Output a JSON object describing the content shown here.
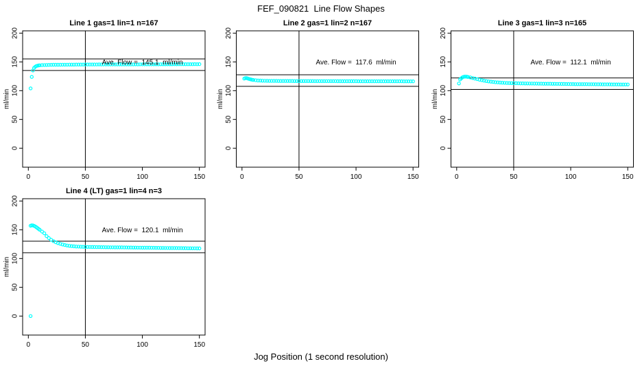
{
  "figure": {
    "title": "FEF_090821  Line Flow Shapes",
    "xlabel": "Jog Position (1 second resolution)",
    "background_color": "#ffffff",
    "point_color": "#00ffff",
    "axis_color": "#000000"
  },
  "chart_data": [
    {
      "type": "scatter",
      "title": "Line 1 gas=1 lin=1 n=167",
      "ylabel": "ml/min",
      "annotation": "Ave. Flow =  145.1  ml/min",
      "annotation_xy": [
        100,
        150
      ],
      "ave_flow_ml_min": 145.1,
      "ref_line_x": 50,
      "ref_lines_y": [
        135.1,
        155.1
      ],
      "xticks": [
        0,
        50,
        100,
        150
      ],
      "yticks": [
        0,
        50,
        100,
        150,
        200
      ],
      "xlim": [
        -5,
        155
      ],
      "ylim": [
        -33,
        204
      ],
      "points": [
        [
          2,
          104
        ],
        [
          3,
          124
        ],
        [
          4,
          135
        ],
        [
          5,
          139.5
        ],
        [
          6,
          141.5
        ],
        [
          7,
          142.8
        ],
        [
          8,
          143.4
        ],
        [
          9,
          143.8
        ],
        [
          10,
          144.1
        ],
        [
          12,
          144.4
        ],
        [
          14,
          144.6
        ],
        [
          16,
          144.7
        ],
        [
          18,
          144.8
        ],
        [
          20,
          144.9
        ],
        [
          22,
          145
        ],
        [
          24,
          145
        ],
        [
          26,
          145.1
        ],
        [
          28,
          145.1
        ],
        [
          30,
          145.2
        ],
        [
          32,
          145.2
        ],
        [
          34,
          145.2
        ],
        [
          36,
          145.3
        ],
        [
          38,
          145.3
        ],
        [
          40,
          145.3
        ],
        [
          42,
          145.4
        ],
        [
          44,
          145.4
        ],
        [
          46,
          145.4
        ],
        [
          48,
          145.4
        ],
        [
          50,
          145.5
        ],
        [
          52,
          145.5
        ],
        [
          54,
          145.5
        ],
        [
          56,
          145.5
        ],
        [
          58,
          145.5
        ],
        [
          60,
          145.5
        ],
        [
          62,
          145.6
        ],
        [
          64,
          145.5
        ],
        [
          66,
          145.6
        ],
        [
          68,
          145.6
        ],
        [
          70,
          145.6
        ],
        [
          72,
          145.6
        ],
        [
          74,
          145.6
        ],
        [
          76,
          145.6
        ],
        [
          78,
          145.7
        ],
        [
          80,
          145.6
        ],
        [
          82,
          145.7
        ],
        [
          84,
          145.7
        ],
        [
          86,
          145.7
        ],
        [
          88,
          145.7
        ],
        [
          90,
          145.7
        ],
        [
          92,
          145.7
        ],
        [
          94,
          145.8
        ],
        [
          96,
          145.7
        ],
        [
          98,
          145.8
        ],
        [
          100,
          145.8
        ],
        [
          102,
          145.8
        ],
        [
          104,
          145.8
        ],
        [
          106,
          145.8
        ],
        [
          108,
          145.8
        ],
        [
          110,
          145.8
        ],
        [
          112,
          145.9
        ],
        [
          114,
          145.8
        ],
        [
          116,
          145.9
        ],
        [
          118,
          145.9
        ],
        [
          120,
          145.9
        ],
        [
          122,
          145.9
        ],
        [
          124,
          145.9
        ],
        [
          126,
          145.9
        ],
        [
          128,
          146
        ],
        [
          130,
          145.9
        ],
        [
          132,
          146
        ],
        [
          134,
          146
        ],
        [
          136,
          146
        ],
        [
          138,
          146
        ],
        [
          140,
          146
        ],
        [
          142,
          146
        ],
        [
          144,
          146
        ],
        [
          146,
          146.1
        ],
        [
          148,
          146
        ],
        [
          150,
          146.1
        ]
      ]
    },
    {
      "type": "scatter",
      "title": "Line 2 gas=1 lin=2 n=167",
      "ylabel": "ml/min",
      "annotation": "Ave. Flow =  117.6  ml/min",
      "annotation_xy": [
        100,
        150
      ],
      "ave_flow_ml_min": 117.6,
      "ref_line_x": 50,
      "ref_lines_y": [
        107.6,
        127.6
      ],
      "xticks": [
        0,
        50,
        100,
        150
      ],
      "yticks": [
        0,
        50,
        100,
        150,
        200
      ],
      "xlim": [
        -5,
        155
      ],
      "ylim": [
        -33,
        204
      ],
      "points": [
        [
          2,
          121
        ],
        [
          3,
          122
        ],
        [
          4,
          121.8
        ],
        [
          5,
          121.2
        ],
        [
          6,
          120.5
        ],
        [
          7,
          119.9
        ],
        [
          8,
          119.4
        ],
        [
          9,
          119
        ],
        [
          10,
          118.6
        ],
        [
          12,
          118.1
        ],
        [
          14,
          117.7
        ],
        [
          16,
          117.5
        ],
        [
          18,
          117.3
        ],
        [
          20,
          117.2
        ],
        [
          22,
          117.1
        ],
        [
          24,
          117
        ],
        [
          26,
          117
        ],
        [
          28,
          116.9
        ],
        [
          30,
          116.9
        ],
        [
          32,
          116.8
        ],
        [
          34,
          116.8
        ],
        [
          36,
          116.8
        ],
        [
          38,
          116.8
        ],
        [
          40,
          116.8
        ],
        [
          42,
          116.8
        ],
        [
          44,
          116.8
        ],
        [
          46,
          116.7
        ],
        [
          48,
          116.7
        ],
        [
          50,
          116.7
        ],
        [
          52,
          116.7
        ],
        [
          54,
          116.7
        ],
        [
          56,
          116.7
        ],
        [
          58,
          116.7
        ],
        [
          60,
          116.7
        ],
        [
          62,
          116.7
        ],
        [
          64,
          116.6
        ],
        [
          66,
          116.6
        ],
        [
          68,
          116.6
        ],
        [
          70,
          116.6
        ],
        [
          72,
          116.6
        ],
        [
          74,
          116.6
        ],
        [
          76,
          116.6
        ],
        [
          78,
          116.6
        ],
        [
          80,
          116.6
        ],
        [
          82,
          116.6
        ],
        [
          84,
          116.5
        ],
        [
          86,
          116.5
        ],
        [
          88,
          116.5
        ],
        [
          90,
          116.5
        ],
        [
          92,
          116.5
        ],
        [
          94,
          116.5
        ],
        [
          96,
          116.5
        ],
        [
          98,
          116.5
        ],
        [
          100,
          116.5
        ],
        [
          102,
          116.4
        ],
        [
          104,
          116.4
        ],
        [
          106,
          116.4
        ],
        [
          108,
          116.4
        ],
        [
          110,
          116.4
        ],
        [
          112,
          116.4
        ],
        [
          114,
          116.4
        ],
        [
          116,
          116.4
        ],
        [
          118,
          116.4
        ],
        [
          120,
          116.4
        ],
        [
          122,
          116.3
        ],
        [
          124,
          116.3
        ],
        [
          126,
          116.3
        ],
        [
          128,
          116.3
        ],
        [
          130,
          116.3
        ],
        [
          132,
          116.3
        ],
        [
          134,
          116.3
        ],
        [
          136,
          116.3
        ],
        [
          138,
          116.3
        ],
        [
          140,
          116.3
        ],
        [
          142,
          116.2
        ],
        [
          144,
          116.2
        ],
        [
          146,
          116.2
        ],
        [
          148,
          116.2
        ],
        [
          150,
          116.2
        ]
      ]
    },
    {
      "type": "scatter",
      "title": "Line 3 gas=1 lin=3 n=165",
      "ylabel": "ml/min",
      "annotation": "Ave. Flow =  112.1  ml/min",
      "annotation_xy": [
        100,
        150
      ],
      "ave_flow_ml_min": 112.1,
      "ref_line_x": 50,
      "ref_lines_y": [
        102.1,
        122.1
      ],
      "xticks": [
        0,
        50,
        100,
        150
      ],
      "yticks": [
        0,
        50,
        100,
        150,
        200
      ],
      "xlim": [
        -5,
        155
      ],
      "ylim": [
        -33,
        204
      ],
      "points": [
        [
          2,
          112.5
        ],
        [
          3,
          119.5
        ],
        [
          4,
          121.5
        ],
        [
          5,
          123
        ],
        [
          6,
          124
        ],
        [
          7,
          124.5
        ],
        [
          8,
          124.5
        ],
        [
          9,
          124.2
        ],
        [
          10,
          123.8
        ],
        [
          12,
          123
        ],
        [
          14,
          122
        ],
        [
          16,
          121
        ],
        [
          18,
          120
        ],
        [
          20,
          119
        ],
        [
          22,
          118.2
        ],
        [
          24,
          117.4
        ],
        [
          26,
          116.7
        ],
        [
          28,
          116.1
        ],
        [
          30,
          115.6
        ],
        [
          32,
          115.1
        ],
        [
          34,
          114.7
        ],
        [
          36,
          114.4
        ],
        [
          38,
          114.1
        ],
        [
          40,
          113.8
        ],
        [
          42,
          113.6
        ],
        [
          44,
          113.4
        ],
        [
          46,
          113.3
        ],
        [
          48,
          113.1
        ],
        [
          50,
          113
        ],
        [
          52,
          112.9
        ],
        [
          54,
          112.8
        ],
        [
          56,
          112.7
        ],
        [
          58,
          112.6
        ],
        [
          60,
          112.5
        ],
        [
          62,
          112.5
        ],
        [
          64,
          112.4
        ],
        [
          66,
          112.4
        ],
        [
          68,
          112.3
        ],
        [
          70,
          112.3
        ],
        [
          72,
          112.2
        ],
        [
          74,
          112.2
        ],
        [
          76,
          112.1
        ],
        [
          78,
          112.1
        ],
        [
          80,
          112
        ],
        [
          82,
          112
        ],
        [
          84,
          111.9
        ],
        [
          86,
          111.9
        ],
        [
          88,
          111.8
        ],
        [
          90,
          111.8
        ],
        [
          92,
          111.7
        ],
        [
          94,
          111.7
        ],
        [
          96,
          111.6
        ],
        [
          98,
          111.6
        ],
        [
          100,
          111.5
        ],
        [
          102,
          111.5
        ],
        [
          104,
          111.4
        ],
        [
          106,
          111.4
        ],
        [
          108,
          111.4
        ],
        [
          110,
          111.3
        ],
        [
          112,
          111.3
        ],
        [
          114,
          111.3
        ],
        [
          116,
          111.2
        ],
        [
          118,
          111.2
        ],
        [
          120,
          111.2
        ],
        [
          122,
          111.1
        ],
        [
          124,
          111.1
        ],
        [
          126,
          111.1
        ],
        [
          128,
          111
        ],
        [
          130,
          111
        ],
        [
          132,
          111
        ],
        [
          134,
          111
        ],
        [
          136,
          110.9
        ],
        [
          138,
          110.9
        ],
        [
          140,
          110.9
        ],
        [
          142,
          110.9
        ],
        [
          144,
          110.8
        ],
        [
          146,
          110.8
        ],
        [
          148,
          110.8
        ],
        [
          150,
          110.8
        ]
      ]
    },
    {
      "type": "scatter",
      "title": "Line 4 (LT) gas=1 lin=4 n=3",
      "ylabel": "ml/min",
      "annotation": "Ave. Flow =  120.1  ml/min",
      "annotation_xy": [
        100,
        150
      ],
      "ave_flow_ml_min": 120.1,
      "ref_line_x": 50,
      "ref_lines_y": [
        110.1,
        130.1
      ],
      "xticks": [
        0,
        50,
        100,
        150
      ],
      "yticks": [
        0,
        50,
        100,
        150,
        200
      ],
      "xlim": [
        -5,
        155
      ],
      "ylim": [
        -33,
        204
      ],
      "points": [
        [
          2,
          0
        ],
        [
          2,
          157
        ],
        [
          3,
          157.8
        ],
        [
          4,
          157.5
        ],
        [
          5,
          156.8
        ],
        [
          6,
          155.8
        ],
        [
          7,
          154.5
        ],
        [
          8,
          153
        ],
        [
          9,
          151.5
        ],
        [
          10,
          150
        ],
        [
          12,
          146.8
        ],
        [
          14,
          143.8
        ],
        [
          16,
          139
        ],
        [
          18,
          135.5
        ],
        [
          20,
          132.5
        ],
        [
          22,
          130.3
        ],
        [
          24,
          128.4
        ],
        [
          26,
          126.8
        ],
        [
          28,
          125.5
        ],
        [
          30,
          124.4
        ],
        [
          32,
          123.5
        ],
        [
          34,
          122.7
        ],
        [
          36,
          122.1
        ],
        [
          38,
          121.6
        ],
        [
          40,
          121.2
        ],
        [
          42,
          120.9
        ],
        [
          44,
          120.7
        ],
        [
          46,
          120.5
        ],
        [
          48,
          120.4
        ],
        [
          50,
          120.3
        ],
        [
          52,
          120.2
        ],
        [
          54,
          120.1
        ],
        [
          56,
          120
        ],
        [
          58,
          120
        ],
        [
          60,
          119.9
        ],
        [
          62,
          119.9
        ],
        [
          64,
          119.8
        ],
        [
          66,
          119.8
        ],
        [
          68,
          119.7
        ],
        [
          70,
          119.7
        ],
        [
          72,
          119.6
        ],
        [
          74,
          119.6
        ],
        [
          76,
          119.5
        ],
        [
          78,
          119.5
        ],
        [
          80,
          119.4
        ],
        [
          82,
          119.4
        ],
        [
          84,
          119.3
        ],
        [
          86,
          119.3
        ],
        [
          88,
          119.2
        ],
        [
          90,
          119.2
        ],
        [
          92,
          119.1
        ],
        [
          94,
          119.1
        ],
        [
          96,
          119
        ],
        [
          98,
          119
        ],
        [
          100,
          118.9
        ],
        [
          102,
          118.9
        ],
        [
          104,
          118.8
        ],
        [
          106,
          118.8
        ],
        [
          108,
          118.7
        ],
        [
          110,
          118.7
        ],
        [
          112,
          118.6
        ],
        [
          114,
          118.6
        ],
        [
          116,
          118.5
        ],
        [
          118,
          118.5
        ],
        [
          120,
          118.4
        ],
        [
          122,
          118.4
        ],
        [
          124,
          118.3
        ],
        [
          126,
          118.3
        ],
        [
          128,
          118.2
        ],
        [
          130,
          118.2
        ],
        [
          132,
          118.1
        ],
        [
          134,
          118.1
        ],
        [
          136,
          118
        ],
        [
          138,
          118
        ],
        [
          140,
          117.9
        ],
        [
          142,
          117.9
        ],
        [
          144,
          117.8
        ],
        [
          146,
          117.8
        ],
        [
          148,
          117.7
        ],
        [
          150,
          117.7
        ]
      ]
    }
  ]
}
